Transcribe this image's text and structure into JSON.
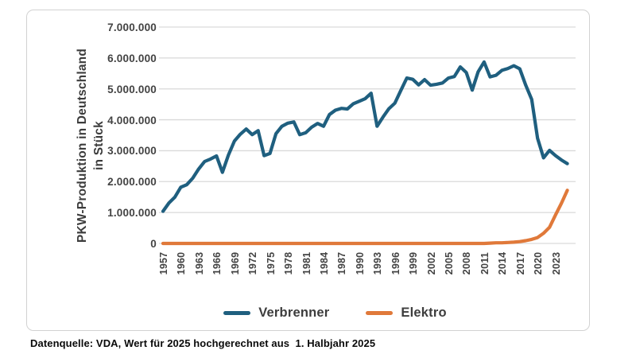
{
  "chart": {
    "source_note": "Datenquelle: VDA, Wert für 2025 hochgerechnet aus  1. Halbjahr 2025"
  },
  "chart_data": {
    "type": "line",
    "title": "",
    "ylabel": "PKW-Produktion in Deutschland in Stück",
    "ylabel_lines": [
      "PKW-Produktion in Deutschland",
      "in Stück"
    ],
    "xlabel": "",
    "grid": true,
    "legend_position": "bottom",
    "ylim": [
      0,
      7000000
    ],
    "y_ticks": [
      {
        "value": 7000000,
        "label": "7.000.000"
      },
      {
        "value": 6000000,
        "label": "6.000.000"
      },
      {
        "value": 5000000,
        "label": "5.000.000"
      },
      {
        "value": 4000000,
        "label": "4.000.000"
      },
      {
        "value": 3000000,
        "label": "3.000.000"
      },
      {
        "value": 2000000,
        "label": "2.000.000"
      },
      {
        "value": 1000000,
        "label": "1.000.000"
      },
      {
        "value": 0,
        "label": "0"
      }
    ],
    "x_tick_years": [
      1957,
      1960,
      1963,
      1966,
      1969,
      1972,
      1975,
      1978,
      1981,
      1984,
      1987,
      1990,
      1993,
      1996,
      1999,
      2002,
      2005,
      2008,
      2011,
      2014,
      2017,
      2020,
      2023
    ],
    "x": [
      1957,
      1958,
      1959,
      1960,
      1961,
      1962,
      1963,
      1964,
      1965,
      1966,
      1967,
      1968,
      1969,
      1970,
      1971,
      1972,
      1973,
      1974,
      1975,
      1976,
      1977,
      1978,
      1979,
      1980,
      1981,
      1982,
      1983,
      1984,
      1985,
      1986,
      1987,
      1988,
      1989,
      1990,
      1991,
      1992,
      1993,
      1994,
      1995,
      1996,
      1997,
      1998,
      1999,
      2000,
      2001,
      2002,
      2003,
      2004,
      2005,
      2006,
      2007,
      2008,
      2009,
      2010,
      2011,
      2012,
      2013,
      2014,
      2015,
      2016,
      2017,
      2018,
      2019,
      2020,
      2021,
      2022,
      2023,
      2024,
      2025
    ],
    "series": [
      {
        "name": "Verbrenner",
        "color": "#1F5F7F",
        "values": [
          1040000,
          1310000,
          1500000,
          1820000,
          1900000,
          2110000,
          2410000,
          2650000,
          2730000,
          2830000,
          2300000,
          2860000,
          3310000,
          3530000,
          3700000,
          3520000,
          3650000,
          2840000,
          2910000,
          3550000,
          3790000,
          3890000,
          3930000,
          3520000,
          3580000,
          3760000,
          3880000,
          3790000,
          4170000,
          4310000,
          4370000,
          4350000,
          4520000,
          4600000,
          4680000,
          4860000,
          3790000,
          4090000,
          4360000,
          4540000,
          4950000,
          5350000,
          5310000,
          5130000,
          5300000,
          5120000,
          5150000,
          5190000,
          5350000,
          5400000,
          5710000,
          5530000,
          4960000,
          5550000,
          5870000,
          5390000,
          5440000,
          5600000,
          5660000,
          5750000,
          5650000,
          5120000,
          4660000,
          3400000,
          2770000,
          3010000,
          2840000,
          2700000,
          2580000
        ]
      },
      {
        "name": "Elektro",
        "color": "#E0793A",
        "values": [
          0,
          0,
          0,
          0,
          0,
          0,
          0,
          0,
          0,
          0,
          0,
          0,
          0,
          0,
          0,
          0,
          0,
          0,
          0,
          0,
          0,
          0,
          0,
          0,
          0,
          0,
          0,
          0,
          0,
          0,
          0,
          0,
          0,
          0,
          0,
          0,
          0,
          0,
          0,
          0,
          0,
          0,
          0,
          0,
          0,
          0,
          0,
          0,
          0,
          0,
          0,
          0,
          0,
          0,
          0,
          10000,
          20000,
          20000,
          30000,
          40000,
          60000,
          90000,
          130000,
          190000,
          330000,
          520000,
          920000,
          1300000,
          1720000
        ]
      }
    ],
    "chrome_colors": {
      "gridline": "#D9D9D9",
      "tick_text": "#434343",
      "card_border": "#D2D2D2",
      "background": "#FFFFFF"
    }
  }
}
